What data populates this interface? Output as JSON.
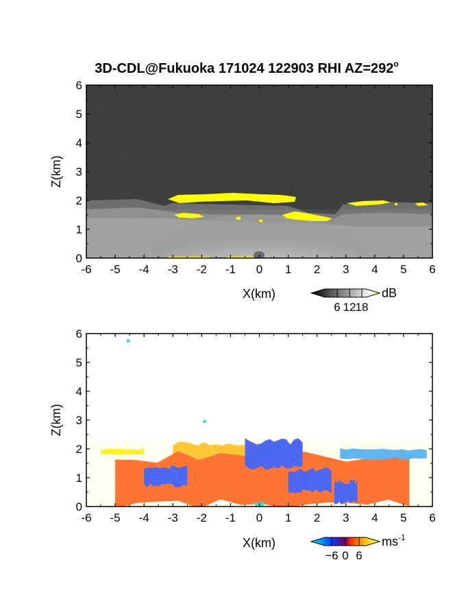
{
  "figure": {
    "title": "3D-CDL@Fukuoka 171024 122903 RHI AZ=292",
    "title_superscript": "o"
  },
  "chart_data": [
    {
      "type": "heatmap",
      "panel": "top",
      "quantity_unit": "dB",
      "xlabel": "X(km)",
      "ylabel": "Z(km)",
      "xlim": [
        -6,
        6
      ],
      "ylim": [
        0,
        6
      ],
      "x_ticks": [
        "-6",
        "-5",
        "-4",
        "-3",
        "-2",
        "-1",
        "0",
        "1",
        "2",
        "3",
        "4",
        "5",
        "6"
      ],
      "y_ticks": [
        "0",
        "1",
        "2",
        "3",
        "4",
        "5",
        "6"
      ],
      "colorbar": {
        "unit": "dB",
        "ticks": [
          "6",
          "12",
          "18"
        ],
        "tick_values": [
          6,
          12,
          18
        ],
        "range": [
          0,
          20
        ],
        "colors": [
          "#000000",
          "#ffffff",
          "#ffff00"
        ]
      },
      "features": {
        "background_noise_gray": "#2a2a2a",
        "boundary_layer_top_km": 2.0,
        "bright_core_top_km": 1.6,
        "yellow_highlight": "#ffff00",
        "yellow_bands": [
          {
            "x": [
              -3.1,
              0.9
            ],
            "z": [
              1.95,
              2.2
            ]
          },
          {
            "x": [
              -2.9,
              -2.1
            ],
            "z": [
              1.5,
              1.65
            ]
          },
          {
            "x": [
              1.1,
              2.9
            ],
            "z": [
              1.45,
              1.65
            ]
          },
          {
            "x": [
              3.2,
              4.2
            ],
            "z": [
              1.9,
              2.05
            ]
          }
        ]
      }
    },
    {
      "type": "heatmap",
      "panel": "bottom",
      "quantity_unit": "ms",
      "quantity_unit_exponent": "-1",
      "xlabel": "X(km)",
      "ylabel": "Z(km)",
      "xlim": [
        -6,
        6
      ],
      "ylim": [
        0,
        6
      ],
      "x_ticks": [
        "-6",
        "-5",
        "-4",
        "-3",
        "-2",
        "-1",
        "0",
        "1",
        "2",
        "3",
        "4",
        "5",
        "6"
      ],
      "y_ticks": [
        "0",
        "1",
        "2",
        "3",
        "4",
        "5",
        "6"
      ],
      "colorbar": {
        "unit": "ms",
        "unit_exponent": "-1",
        "ticks": [
          "−6",
          "0",
          "6"
        ],
        "tick_values": [
          -6,
          0,
          6
        ],
        "range": [
          -9,
          9
        ],
        "colors": [
          "#00e5ff",
          "#0040ff",
          "#ff3000",
          "#ffcc00",
          "#ffff66"
        ]
      },
      "features": {
        "regions": [
          {
            "color": "#ffee00",
            "x": [
              -5.5,
              -4.0
            ],
            "z": [
              1.8,
              2.0
            ]
          },
          {
            "color": "#ffbb22",
            "x": [
              -3.0,
              0.0
            ],
            "z": [
              1.6,
              2.2
            ]
          },
          {
            "color": "#ff5a1e",
            "x": [
              -5.0,
              5.2
            ],
            "z": [
              0.0,
              1.8
            ]
          },
          {
            "color": "#2a4bff",
            "x": [
              -4.0,
              -2.5
            ],
            "z": [
              0.7,
              1.4
            ]
          },
          {
            "color": "#2a4bff",
            "x": [
              -0.5,
              1.5
            ],
            "z": [
              1.3,
              2.3
            ]
          },
          {
            "color": "#2a4bff",
            "x": [
              1.0,
              2.5
            ],
            "z": [
              0.5,
              1.3
            ]
          },
          {
            "color": "#2a4bff",
            "x": [
              2.6,
              3.4
            ],
            "z": [
              0.1,
              0.9
            ]
          },
          {
            "color": "#40a8ff",
            "x": [
              2.8,
              5.8
            ],
            "z": [
              1.65,
              2.0
            ]
          },
          {
            "color": "#00e0e0",
            "x": [
              -0.15,
              0.15
            ],
            "z": [
              0.0,
              0.15
            ]
          }
        ],
        "isolated_points": [
          {
            "x": -4.55,
            "z": 5.75,
            "color": "#20d0ff"
          },
          {
            "x": -1.9,
            "z": 2.95,
            "color": "#20d0ff"
          }
        ]
      }
    }
  ]
}
